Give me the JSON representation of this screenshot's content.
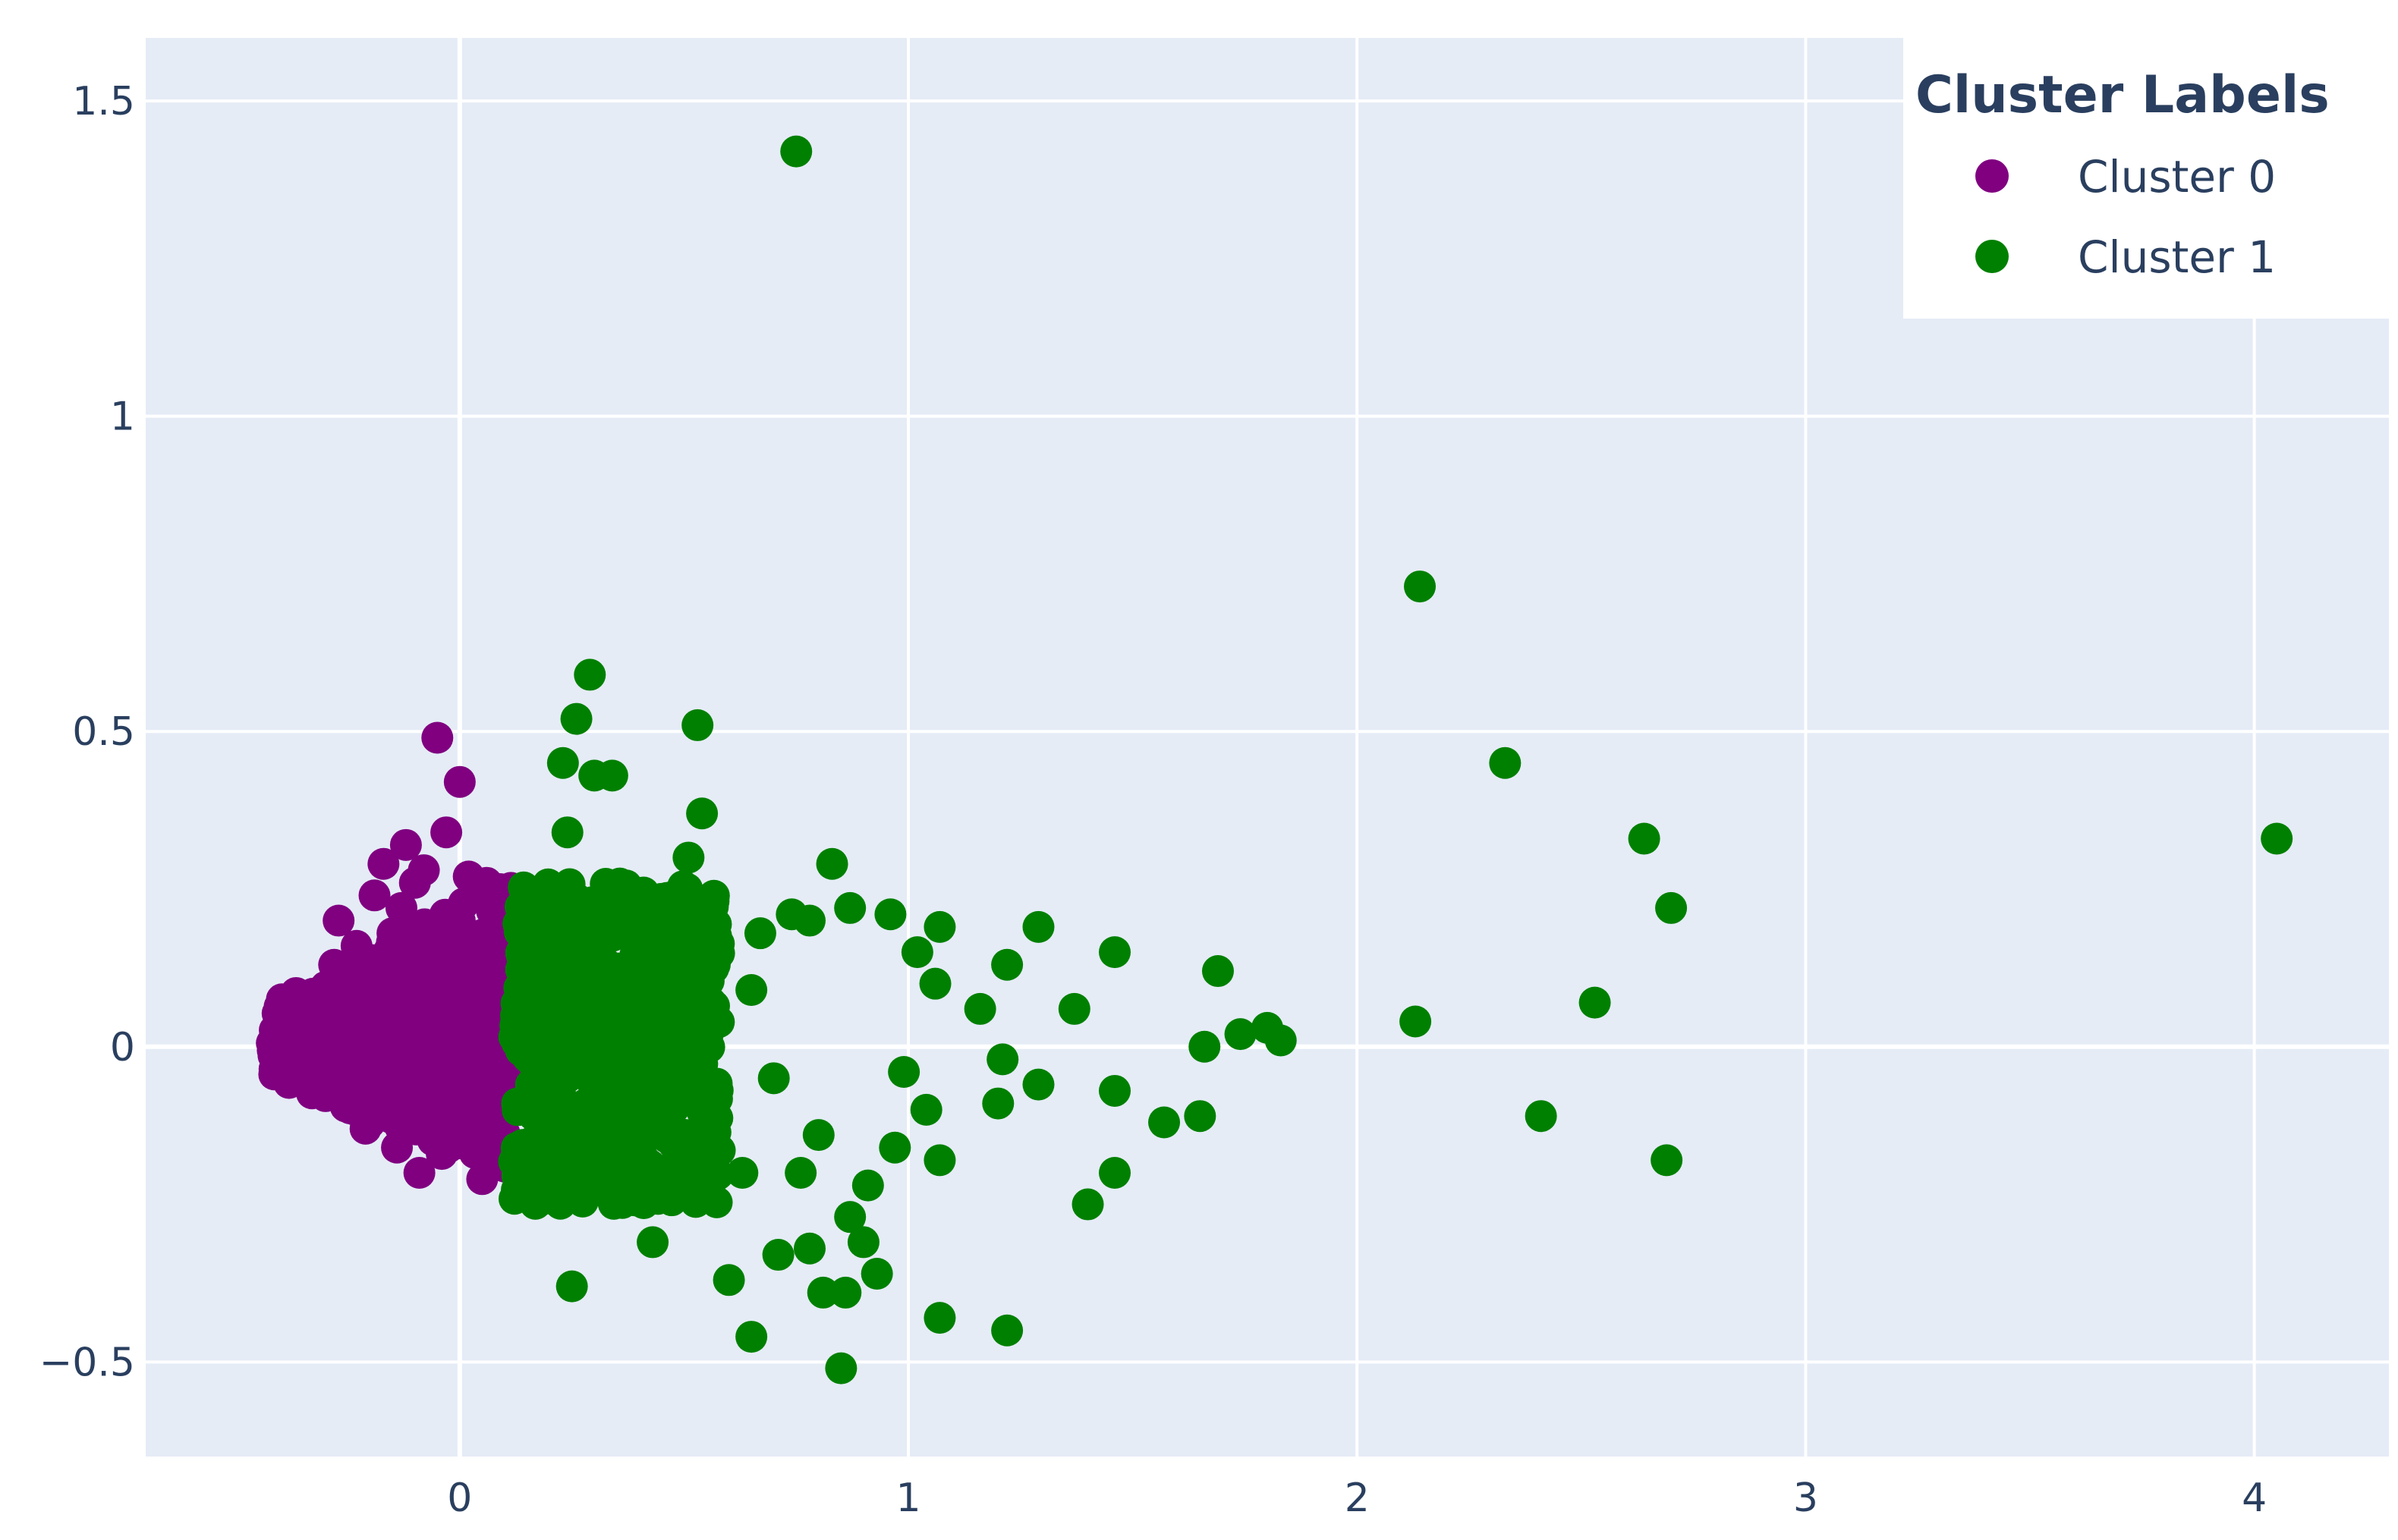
{
  "chart_data": {
    "type": "scatter",
    "xlim": [
      -0.7,
      4.3
    ],
    "ylim": [
      -0.65,
      1.6
    ],
    "x_ticks": [
      0,
      1,
      2,
      3,
      4
    ],
    "x_tick_labels": [
      "0",
      "1",
      "2",
      "3",
      "4"
    ],
    "y_ticks": [
      -0.5,
      0,
      0.5,
      1,
      1.5
    ],
    "y_tick_labels": [
      "−0.5",
      "0",
      "0.5",
      "1",
      "1.5"
    ],
    "grid": true,
    "legend": {
      "title": "Cluster Labels",
      "placement": "top-right"
    },
    "series": [
      {
        "name": "Cluster 0",
        "color": "#800080",
        "region": {
          "x": [
            -0.42,
            0.12
          ],
          "y_spread": [
            -0.2,
            0.27
          ]
        },
        "points": [
          [
            -0.05,
            0.49
          ],
          [
            -0.0,
            0.42
          ],
          [
            -0.03,
            0.34
          ],
          [
            -0.12,
            0.32
          ],
          [
            -0.17,
            0.29
          ],
          [
            -0.27,
            0.2
          ],
          [
            -0.28,
            0.13
          ],
          [
            -0.1,
            0.26
          ],
          [
            0.02,
            0.27
          ],
          [
            0.06,
            0.26
          ],
          [
            0.09,
            0.25
          ],
          [
            -0.4,
            0.0
          ],
          [
            -0.38,
            0.03
          ],
          [
            -0.36,
            -0.02
          ],
          [
            -0.33,
            0.06
          ],
          [
            -0.31,
            -0.04
          ],
          [
            -0.25,
            -0.08
          ],
          [
            -0.2,
            -0.12
          ],
          [
            -0.14,
            -0.16
          ],
          [
            -0.09,
            -0.2
          ],
          [
            -0.04,
            -0.17
          ],
          [
            0.05,
            -0.21
          ],
          [
            0.1,
            -0.19
          ],
          [
            -0.22,
            0.1
          ],
          [
            -0.15,
            0.18
          ],
          [
            -0.07,
            0.14
          ],
          [
            0.0,
            0.2
          ],
          [
            0.07,
            0.18
          ],
          [
            0.11,
            0.12
          ],
          [
            0.04,
            -0.1
          ],
          [
            -0.18,
            -0.02
          ],
          [
            -0.11,
            0.05
          ],
          [
            -0.02,
            0.02
          ],
          [
            0.08,
            0.05
          ],
          [
            -0.06,
            -0.08
          ],
          [
            0.03,
            0.1
          ],
          [
            -0.26,
            0.02
          ],
          [
            -0.19,
            0.24
          ],
          [
            -0.23,
            0.16
          ],
          [
            -0.29,
            -0.06
          ],
          [
            -0.13,
            0.22
          ],
          [
            0.1,
            0.2
          ],
          [
            0.11,
            -0.05
          ],
          [
            -0.34,
            0.07
          ],
          [
            -0.01,
            -0.14
          ],
          [
            0.06,
            -0.16
          ],
          [
            -0.08,
            0.28
          ],
          [
            -0.16,
            -0.1
          ],
          [
            0.09,
            -0.12
          ],
          [
            -0.21,
            -0.13
          ]
        ]
      },
      {
        "name": "Cluster 1",
        "color": "#008000",
        "region": {
          "x": [
            0.12,
            0.58
          ],
          "y_spread": [
            -0.25,
            0.26
          ]
        },
        "points": [
          [
            0.75,
            1.42
          ],
          [
            2.14,
            0.73
          ],
          [
            2.33,
            0.45
          ],
          [
            2.64,
            0.33
          ],
          [
            2.7,
            0.22
          ],
          [
            4.05,
            0.33
          ],
          [
            2.13,
            0.04
          ],
          [
            2.53,
            0.07
          ],
          [
            2.41,
            -0.11
          ],
          [
            2.69,
            -0.18
          ],
          [
            0.29,
            0.59
          ],
          [
            0.26,
            0.52
          ],
          [
            0.53,
            0.51
          ],
          [
            0.23,
            0.45
          ],
          [
            0.3,
            0.43
          ],
          [
            0.34,
            0.43
          ],
          [
            0.54,
            0.37
          ],
          [
            0.24,
            0.34
          ],
          [
            0.51,
            0.3
          ],
          [
            0.83,
            0.29
          ],
          [
            0.25,
            -0.38
          ],
          [
            0.43,
            -0.31
          ],
          [
            0.6,
            -0.37
          ],
          [
            0.65,
            -0.46
          ],
          [
            0.85,
            -0.51
          ],
          [
            0.78,
            -0.32
          ],
          [
            0.81,
            -0.39
          ],
          [
            0.86,
            -0.39
          ],
          [
            0.93,
            -0.36
          ],
          [
            0.9,
            -0.31
          ],
          [
            0.87,
            -0.27
          ],
          [
            1.07,
            -0.43
          ],
          [
            1.22,
            -0.45
          ],
          [
            0.71,
            -0.33
          ],
          [
            1.29,
            0.19
          ],
          [
            1.37,
            0.06
          ],
          [
            1.46,
            0.15
          ],
          [
            1.46,
            -0.07
          ],
          [
            1.46,
            -0.2
          ],
          [
            1.4,
            -0.25
          ],
          [
            1.57,
            -0.12
          ],
          [
            1.65,
            -0.11
          ],
          [
            1.66,
            0.0
          ],
          [
            1.69,
            0.12
          ],
          [
            1.74,
            0.02
          ],
          [
            1.8,
            0.03
          ],
          [
            1.83,
            0.01
          ],
          [
            1.29,
            -0.06
          ],
          [
            1.22,
            0.13
          ],
          [
            1.07,
            0.19
          ],
          [
            1.07,
            -0.18
          ],
          [
            1.16,
            0.06
          ],
          [
            1.21,
            -0.02
          ],
          [
            1.2,
            -0.09
          ],
          [
            0.97,
            -0.16
          ],
          [
            0.91,
            -0.22
          ],
          [
            0.96,
            0.21
          ],
          [
            0.87,
            0.22
          ],
          [
            0.78,
            0.2
          ],
          [
            0.74,
            0.21
          ],
          [
            1.02,
            0.15
          ],
          [
            1.06,
            0.1
          ],
          [
            0.99,
            -0.04
          ],
          [
            1.04,
            -0.1
          ],
          [
            0.67,
            0.18
          ],
          [
            0.65,
            0.09
          ],
          [
            0.7,
            -0.05
          ],
          [
            0.63,
            -0.2
          ],
          [
            0.76,
            -0.2
          ],
          [
            0.8,
            -0.14
          ]
        ]
      }
    ]
  }
}
